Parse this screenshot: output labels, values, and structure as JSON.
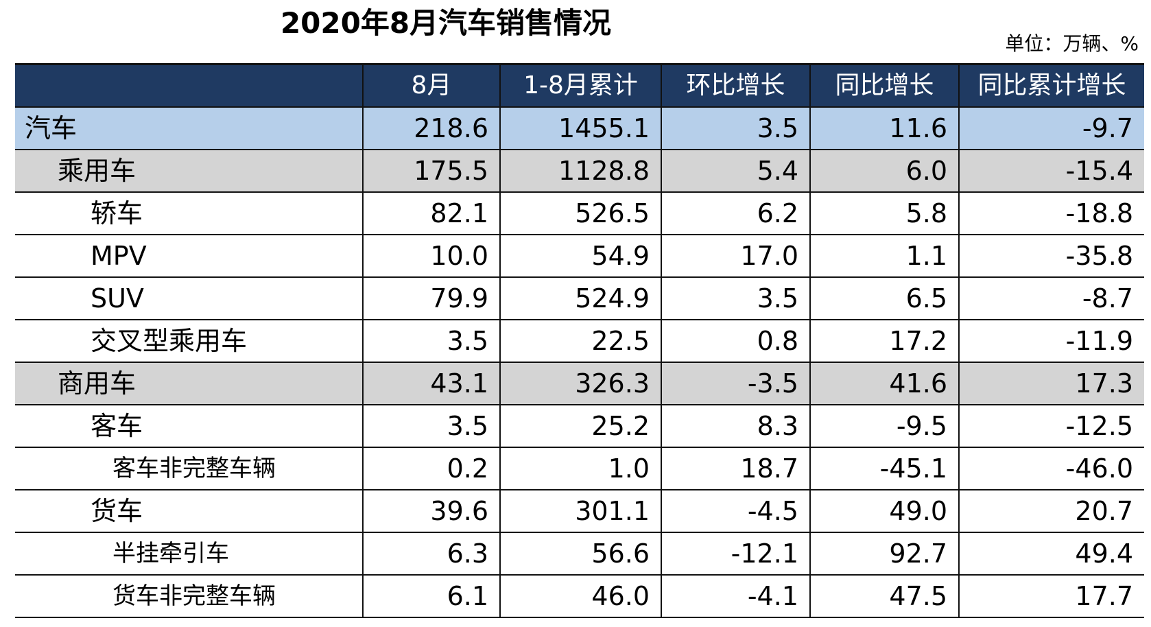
{
  "title": "2020年8月汽车销售情况",
  "unit": "单位：万辆、%",
  "colors": {
    "header_bg": "#1f3a62",
    "header_text": "#ffffff",
    "total_row_bg": "#b6cfea",
    "subtotal_row_bg": "#d4d4d4"
  },
  "chart_data": {
    "type": "table",
    "title": "2020年8月汽车销售情况",
    "unit": "单位：万辆、%",
    "columns": [
      "",
      "8月",
      "1-8月累计",
      "环比增长",
      "同比增长",
      "同比累计增长"
    ],
    "rows": [
      {
        "name": "汽车",
        "level": 0,
        "shade": "blue",
        "values": [
          "218.6",
          "1455.1",
          "3.5",
          "11.6",
          "-9.7"
        ]
      },
      {
        "name": "乘用车",
        "level": 1,
        "shade": "gray",
        "values": [
          "175.5",
          "1128.8",
          "5.4",
          "6.0",
          "-15.4"
        ]
      },
      {
        "name": "轿车",
        "level": 2,
        "shade": "none",
        "values": [
          "82.1",
          "526.5",
          "6.2",
          "5.8",
          "-18.8"
        ]
      },
      {
        "name": "MPV",
        "level": 2,
        "shade": "none",
        "values": [
          "10.0",
          "54.9",
          "17.0",
          "1.1",
          "-35.8"
        ]
      },
      {
        "name": "SUV",
        "level": 2,
        "shade": "none",
        "values": [
          "79.9",
          "524.9",
          "3.5",
          "6.5",
          "-8.7"
        ]
      },
      {
        "name": "交叉型乘用车",
        "level": 2,
        "shade": "none",
        "values": [
          "3.5",
          "22.5",
          "0.8",
          "17.2",
          "-11.9"
        ]
      },
      {
        "name": "商用车",
        "level": 1,
        "shade": "gray",
        "values": [
          "43.1",
          "326.3",
          "-3.5",
          "41.6",
          "17.3"
        ]
      },
      {
        "name": "客车",
        "level": 2,
        "shade": "none",
        "values": [
          "3.5",
          "25.2",
          "8.3",
          "-9.5",
          "-12.5"
        ]
      },
      {
        "name": "客车非完整车辆",
        "level": 3,
        "shade": "none",
        "values": [
          "0.2",
          "1.0",
          "18.7",
          "-45.1",
          "-46.0"
        ]
      },
      {
        "name": "货车",
        "level": 2,
        "shade": "none",
        "values": [
          "39.6",
          "301.1",
          "-4.5",
          "49.0",
          "20.7"
        ]
      },
      {
        "name": "半挂牵引车",
        "level": 3,
        "shade": "none",
        "values": [
          "6.3",
          "56.6",
          "-12.1",
          "92.7",
          "49.4"
        ]
      },
      {
        "name": "货车非完整车辆",
        "level": 3,
        "shade": "none",
        "values": [
          "6.1",
          "46.0",
          "-4.1",
          "47.5",
          "17.7"
        ]
      }
    ]
  }
}
